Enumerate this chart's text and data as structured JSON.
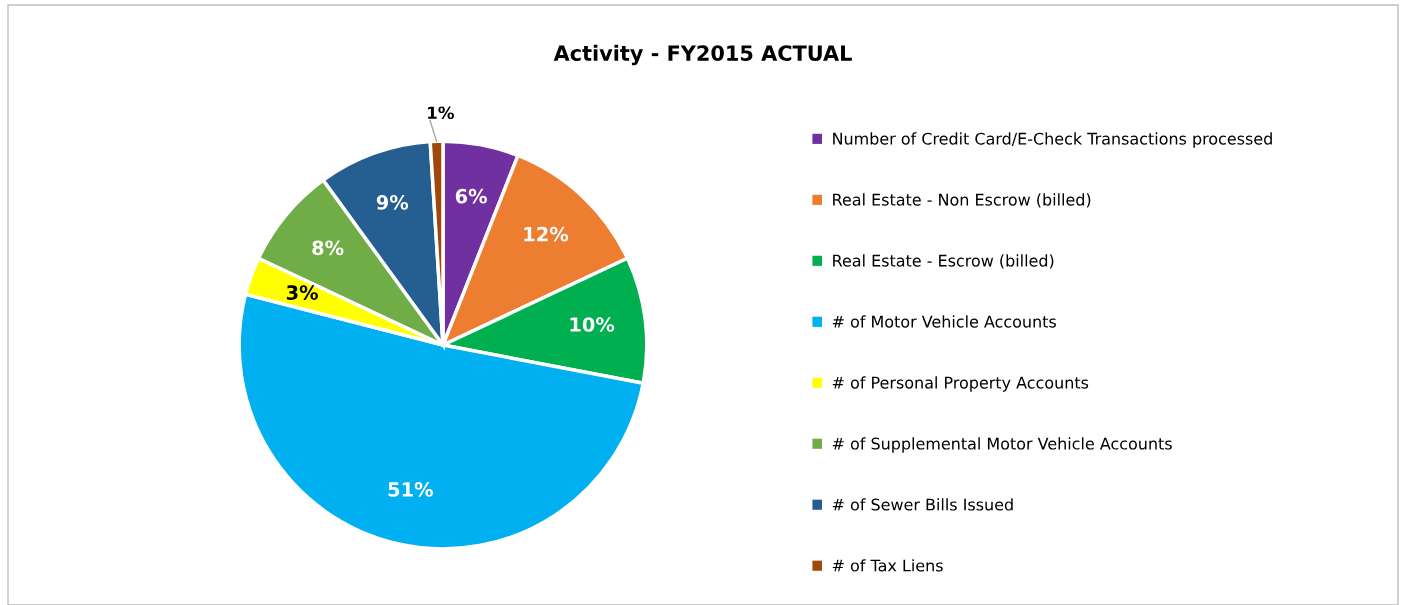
{
  "chart_data": {
    "type": "pie",
    "title": "Activity - FY2015 ACTUAL",
    "categories": [
      "Number of Credit Card/E-Check Transactions processed",
      "Real Estate - Non Escrow (billed)",
      "Real Estate - Escrow (billed)",
      "# of Motor Vehicle Accounts",
      "# of Personal Property Accounts",
      "# of Supplemental Motor Vehicle Accounts",
      "# of Sewer Bills Issued",
      "# of Tax Liens"
    ],
    "values": [
      6,
      12,
      10,
      51,
      3,
      8,
      9,
      1
    ],
    "value_labels": [
      "6%",
      "12%",
      "10%",
      "51%",
      "3%",
      "8%",
      "9%",
      "1%"
    ],
    "colors": [
      "#7030a0",
      "#ed7d31",
      "#00b050",
      "#00b0f0",
      "#ffff00",
      "#70ad47",
      "#255e91",
      "#9e480e"
    ],
    "legend": "right"
  }
}
